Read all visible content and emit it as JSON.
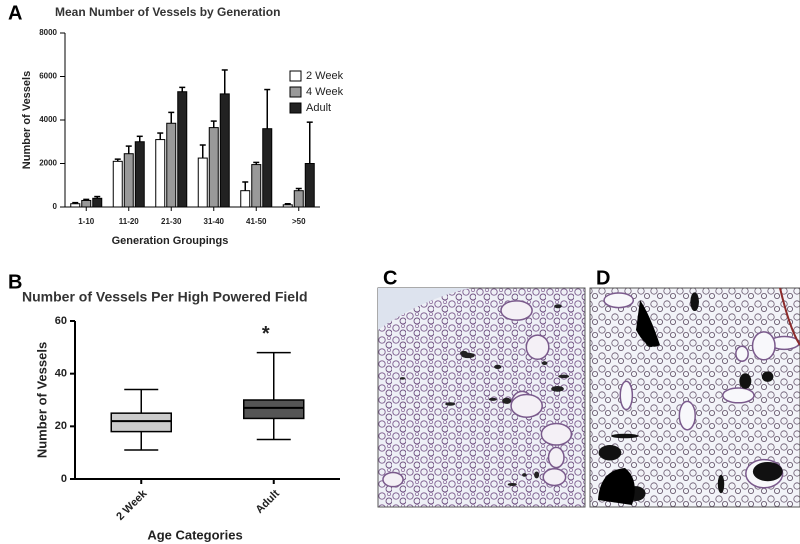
{
  "chart_data": [
    {
      "type": "bar",
      "panel_label": "A",
      "title": "Mean Number of Vessels by Generation",
      "y_label": "Number of Vessels",
      "x_label": "Generation Groupings",
      "categories": [
        "1-10",
        "11-20",
        "21-30",
        "31-40",
        "41-50",
        ">50"
      ],
      "series": [
        {
          "name": "2 Week",
          "color": "#ffffff",
          "values": [
            150,
            2100,
            3100,
            2250,
            750,
            100
          ],
          "errors": [
            50,
            100,
            300,
            600,
            400,
            50
          ]
        },
        {
          "name": "4 Week",
          "color": "#999999",
          "values": [
            300,
            2450,
            3850,
            3650,
            1950,
            750
          ],
          "errors": [
            50,
            350,
            500,
            300,
            100,
            100
          ]
        },
        {
          "name": "Adult",
          "color": "#222222",
          "values": [
            400,
            3000,
            5300,
            5200,
            3600,
            2000
          ],
          "errors": [
            80,
            250,
            200,
            1100,
            1800,
            1900
          ]
        }
      ],
      "ylim": [
        0,
        8000
      ],
      "yticks": [
        0,
        2000,
        4000,
        6000,
        8000
      ],
      "legend": "upper right"
    },
    {
      "type": "box",
      "panel_label": "B",
      "title": "Number of Vessels Per High Powered Field",
      "y_label": "Number of Vessels",
      "x_label": "Age Categories",
      "categories": [
        "2 Week",
        "Adult"
      ],
      "boxes": [
        {
          "min": 11,
          "q1": 18,
          "median": 22,
          "q3": 25,
          "max": 34,
          "color": "#cccccc"
        },
        {
          "min": 15,
          "q1": 23,
          "median": 27,
          "q3": 30,
          "max": 48,
          "color": "#555555"
        }
      ],
      "annotation": "*",
      "ylim": [
        0,
        60
      ],
      "yticks": [
        0,
        20,
        40,
        60
      ]
    }
  ],
  "images": [
    {
      "panel_label": "C"
    },
    {
      "panel_label": "D"
    }
  ]
}
